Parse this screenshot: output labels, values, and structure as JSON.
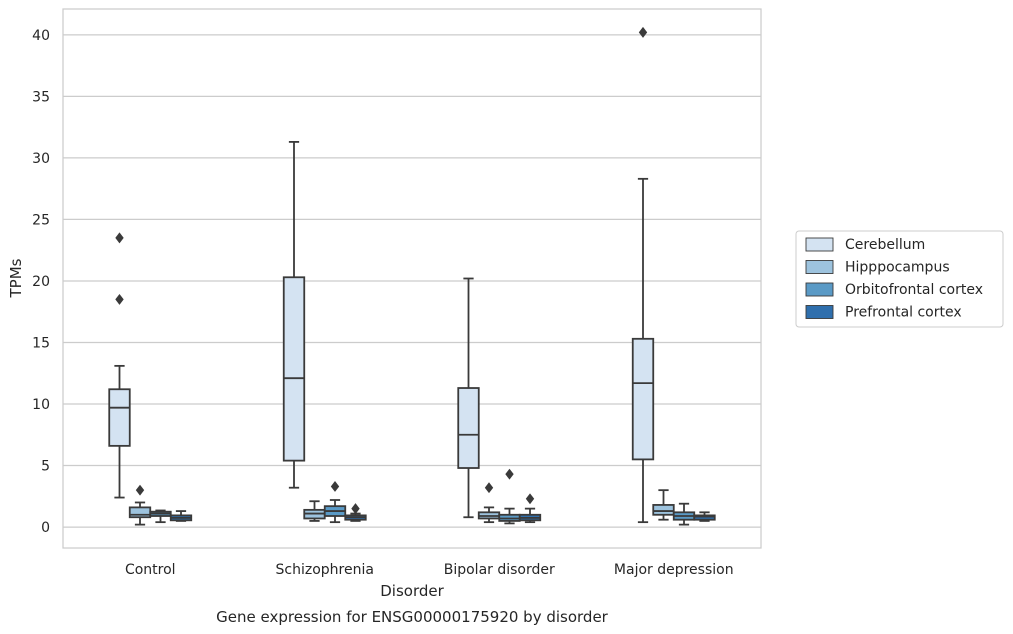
{
  "caption": "Gene expression for ENSG00000175920 by disorder",
  "chart_data": {
    "type": "box",
    "title": "",
    "xlabel": "Disorder",
    "ylabel": "TPMs",
    "categories": [
      "Control",
      "Schizophrenia",
      "Bipolar disorder",
      "Major depression"
    ],
    "ylim": [
      -1.7,
      42.1
    ],
    "yticks": [
      0,
      5,
      10,
      15,
      20,
      25,
      30,
      35,
      40
    ],
    "grid": "horizontal",
    "legend_position": "right",
    "series": [
      {
        "name": "Cerebellum",
        "color": "#d4e3f2",
        "boxes": [
          {
            "whislo": 2.4,
            "q1": 6.6,
            "med": 9.7,
            "q3": 11.2,
            "whishi": 13.1,
            "fliers": [
              18.5,
              23.5
            ]
          },
          {
            "whislo": 3.2,
            "q1": 5.4,
            "med": 12.1,
            "q3": 20.3,
            "whishi": 31.3,
            "fliers": []
          },
          {
            "whislo": 0.8,
            "q1": 4.8,
            "med": 7.5,
            "q3": 11.3,
            "whishi": 20.2,
            "fliers": []
          },
          {
            "whislo": 0.4,
            "q1": 5.5,
            "med": 11.7,
            "q3": 15.3,
            "whishi": 28.3,
            "fliers": [
              40.2
            ]
          }
        ]
      },
      {
        "name": "Hipppocampus",
        "color": "#9dc3de",
        "boxes": [
          {
            "whislo": 0.2,
            "q1": 0.8,
            "med": 1.0,
            "q3": 1.6,
            "whishi": 2.0,
            "fliers": [
              3.0
            ]
          },
          {
            "whislo": 0.5,
            "q1": 0.7,
            "med": 1.1,
            "q3": 1.4,
            "whishi": 2.1,
            "fliers": []
          },
          {
            "whislo": 0.4,
            "q1": 0.7,
            "med": 0.9,
            "q3": 1.2,
            "whishi": 1.6,
            "fliers": [
              3.2
            ]
          },
          {
            "whislo": 0.6,
            "q1": 1.0,
            "med": 1.3,
            "q3": 1.8,
            "whishi": 3.0,
            "fliers": []
          }
        ]
      },
      {
        "name": "Orbitofrontal cortex",
        "color": "#5a9ac6",
        "boxes": [
          {
            "whislo": 0.4,
            "q1": 0.9,
            "med": 1.1,
            "q3": 1.25,
            "whishi": 1.35,
            "fliers": []
          },
          {
            "whislo": 0.4,
            "q1": 0.9,
            "med": 1.3,
            "q3": 1.7,
            "whishi": 2.2,
            "fliers": [
              3.3
            ]
          },
          {
            "whislo": 0.3,
            "q1": 0.5,
            "med": 0.7,
            "q3": 1.0,
            "whishi": 1.5,
            "fliers": [
              4.3
            ]
          },
          {
            "whislo": 0.2,
            "q1": 0.6,
            "med": 0.9,
            "q3": 1.2,
            "whishi": 1.9,
            "fliers": []
          }
        ]
      },
      {
        "name": "Prefrontal cortex",
        "color": "#2f6fad",
        "boxes": [
          {
            "whislo": 0.5,
            "q1": 0.55,
            "med": 0.75,
            "q3": 0.95,
            "whishi": 1.3,
            "fliers": []
          },
          {
            "whislo": 0.5,
            "q1": 0.6,
            "med": 0.8,
            "q3": 0.95,
            "whishi": 1.1,
            "fliers": [
              1.5
            ]
          },
          {
            "whislo": 0.4,
            "q1": 0.55,
            "med": 0.75,
            "q3": 1.0,
            "whishi": 1.5,
            "fliers": [
              2.3
            ]
          },
          {
            "whislo": 0.5,
            "q1": 0.6,
            "med": 0.85,
            "q3": 0.95,
            "whishi": 1.2,
            "fliers": []
          }
        ]
      }
    ]
  }
}
